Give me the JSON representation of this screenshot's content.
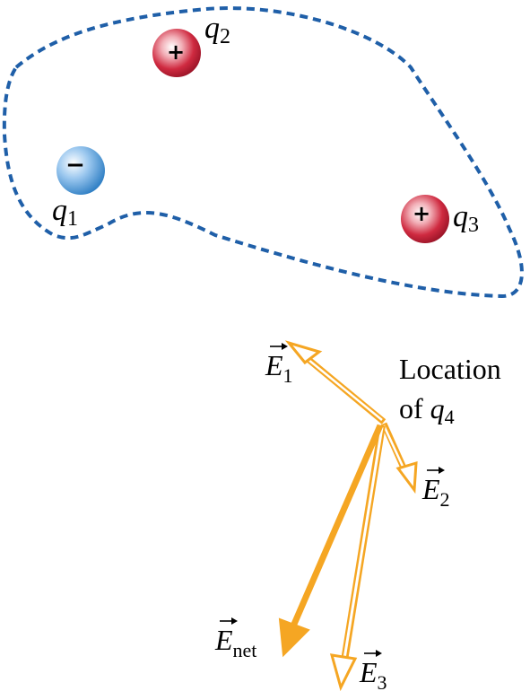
{
  "colors": {
    "boundary": "#1f5fa8",
    "vector": "#f5a623",
    "negative_charge": "#4a9ad6",
    "positive_charge": "#c3192f"
  },
  "charges": [
    {
      "symbol": "q",
      "index": "1",
      "sign": "−",
      "polarity": "negative"
    },
    {
      "symbol": "q",
      "index": "2",
      "sign": "+",
      "polarity": "positive"
    },
    {
      "symbol": "q",
      "index": "3",
      "sign": "+",
      "polarity": "positive"
    }
  ],
  "location": {
    "line1": "Location",
    "line2": "of ",
    "symbol": "q",
    "index": "4"
  },
  "vectors": [
    {
      "symbol": "E",
      "index": "1",
      "style": "hollow"
    },
    {
      "symbol": "E",
      "index": "2",
      "style": "hollow"
    },
    {
      "symbol": "E",
      "index": "3",
      "style": "hollow"
    },
    {
      "symbol": "E",
      "index": "net",
      "style": "solid"
    }
  ]
}
